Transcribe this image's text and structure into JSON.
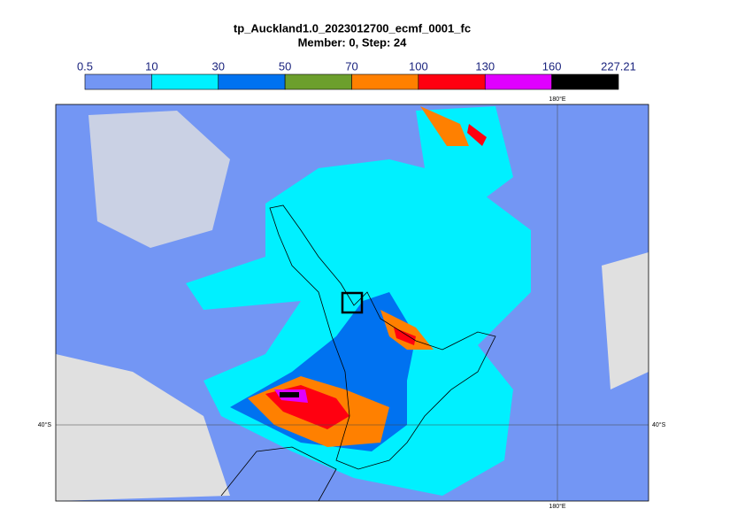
{
  "header": {
    "title": "tp_Auckland1.0_2023012700_ecmf_0001_fc",
    "subtitle": "Member: 0, Step: 24"
  },
  "colorbar": {
    "ticks": [
      0.5,
      10,
      30,
      50,
      70,
      100,
      130,
      160,
      227.21
    ],
    "colors": [
      "#7396f4",
      "#00f0ff",
      "#0072f0",
      "#6c9f2c",
      "#ff8000",
      "#ff0010",
      "#e000ff",
      "#000000"
    ]
  },
  "map": {
    "top_label": "180°E",
    "bottom_label": "180°E",
    "left_label": "40°S",
    "right_label": "40°S"
  }
}
